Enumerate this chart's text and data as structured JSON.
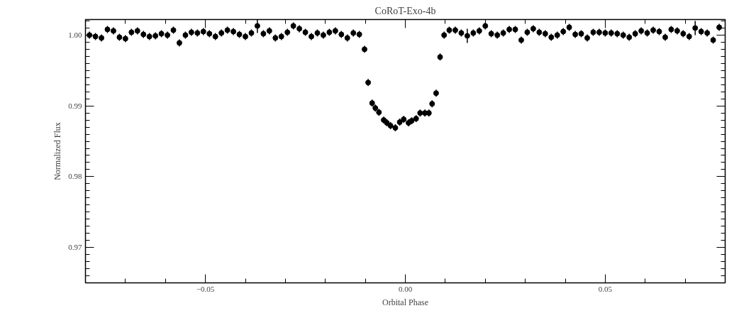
{
  "chart_data": {
    "type": "scatter",
    "title": "CoRoT-Exo-4b",
    "xlabel": "Orbital Phase",
    "ylabel": "Normalized Flux",
    "marker": "circle",
    "color": "#000000",
    "x": [
      -0.079,
      -0.0775,
      -0.076,
      -0.0745,
      -0.073,
      -0.0715,
      -0.07,
      -0.0685,
      -0.067,
      -0.0655,
      -0.064,
      -0.0625,
      -0.061,
      -0.0595,
      -0.058,
      -0.0565,
      -0.055,
      -0.0535,
      -0.052,
      -0.0505,
      -0.049,
      -0.0475,
      -0.046,
      -0.0445,
      -0.043,
      -0.0415,
      -0.04,
      -0.0385,
      -0.037,
      -0.0355,
      -0.034,
      -0.0325,
      -0.031,
      -0.0295,
      -0.028,
      -0.0265,
      -0.025,
      -0.0235,
      -0.022,
      -0.0205,
      -0.019,
      -0.0175,
      -0.016,
      -0.0145,
      -0.013,
      -0.0115,
      -0.0102,
      -0.0093,
      -0.0083,
      -0.0075,
      -0.0066,
      -0.0054,
      -0.0046,
      -0.0037,
      -0.0025,
      -0.0014,
      -0.0004,
      0.0008,
      0.0016,
      0.0027,
      0.0037,
      0.0049,
      0.0059,
      0.0067,
      0.0077,
      0.0087,
      0.0097,
      0.011,
      0.0125,
      0.014,
      0.0155,
      0.017,
      0.0185,
      0.02,
      0.0215,
      0.023,
      0.0245,
      0.026,
      0.0275,
      0.029,
      0.0305,
      0.032,
      0.0335,
      0.035,
      0.0365,
      0.038,
      0.0395,
      0.041,
      0.0425,
      0.044,
      0.0455,
      0.047,
      0.0485,
      0.05,
      0.0515,
      0.053,
      0.0545,
      0.056,
      0.0575,
      0.059,
      0.0605,
      0.062,
      0.0635,
      0.065,
      0.0665,
      0.068,
      0.0695,
      0.071,
      0.0725,
      0.074,
      0.0755,
      0.077,
      0.0785
    ],
    "values": [
      1.0,
      0.9998,
      0.9996,
      1.0008,
      1.0006,
      0.9997,
      0.9995,
      1.0004,
      1.0006,
      1.0001,
      0.9998,
      0.9999,
      1.0002,
      1.0,
      1.0007,
      0.9989,
      1.0,
      1.0004,
      1.0003,
      1.0005,
      1.0002,
      0.9998,
      1.0003,
      1.0007,
      1.0005,
      1.0001,
      0.9998,
      1.0003,
      1.0013,
      1.0002,
      1.0006,
      0.9996,
      0.9998,
      1.0004,
      1.0013,
      1.0009,
      1.0004,
      0.9998,
      1.0003,
      1.0,
      1.0004,
      1.0006,
      1.0001,
      0.9996,
      1.0003,
      1.0001,
      0.998,
      0.9933,
      0.9904,
      0.9897,
      0.9891,
      0.988,
      0.9876,
      0.9872,
      0.9869,
      0.9877,
      0.9881,
      0.9876,
      0.9879,
      0.9882,
      0.989,
      0.989,
      0.989,
      0.9903,
      0.9918,
      0.9969,
      1.0,
      1.0007,
      1.0007,
      1.0003,
      0.9999,
      1.0003,
      1.0006,
      1.0013,
      1.0002,
      1.0,
      1.0003,
      1.0008,
      1.0008,
      0.9993,
      1.0004,
      1.0009,
      1.0004,
      1.0002,
      0.9997,
      1.0,
      1.0005,
      1.0011,
      1.0001,
      1.0002,
      0.9996,
      1.0004,
      1.0004,
      1.0003,
      1.0003,
      1.0002,
      1.0,
      0.9997,
      1.0002,
      1.0006,
      1.0003,
      1.0007,
      1.0005,
      0.9997,
      1.0008,
      1.0006,
      1.0002,
      0.9998,
      1.001,
      1.0005,
      1.0003,
      0.9993,
      1.0011
    ],
    "errors": [
      0.0005,
      0.0005,
      0.0005,
      0.0005,
      0.0005,
      0.0005,
      0.0005,
      0.0005,
      0.0005,
      0.0005,
      0.0005,
      0.0005,
      0.0005,
      0.0005,
      0.0005,
      0.0005,
      0.0005,
      0.0005,
      0.0005,
      0.0005,
      0.0005,
      0.0005,
      0.0005,
      0.0005,
      0.0005,
      0.0005,
      0.0005,
      0.0005,
      0.001,
      0.0005,
      0.0005,
      0.0005,
      0.0005,
      0.0005,
      0.0005,
      0.0005,
      0.0005,
      0.0005,
      0.0005,
      0.0005,
      0.0005,
      0.0005,
      0.0005,
      0.0005,
      0.0005,
      0.0005,
      0.0005,
      0.0005,
      0.0005,
      0.0005,
      0.0005,
      0.0005,
      0.0005,
      0.0005,
      0.0005,
      0.0005,
      0.0005,
      0.0005,
      0.0005,
      0.0005,
      0.0005,
      0.0005,
      0.0005,
      0.0005,
      0.0005,
      0.0005,
      0.0005,
      0.0005,
      0.0005,
      0.0005,
      0.001,
      0.0005,
      0.0005,
      0.0005,
      0.0005,
      0.0005,
      0.0005,
      0.0005,
      0.0005,
      0.0005,
      0.0005,
      0.0005,
      0.0005,
      0.0005,
      0.0005,
      0.0005,
      0.0005,
      0.0005,
      0.0005,
      0.0005,
      0.0005,
      0.0005,
      0.0005,
      0.0005,
      0.0005,
      0.0005,
      0.0005,
      0.0005,
      0.0005,
      0.0005,
      0.0005,
      0.0005,
      0.0005,
      0.0005,
      0.0005,
      0.0005,
      0.0005,
      0.0005,
      0.001,
      0.0005,
      0.0005,
      0.0005,
      0.0005
    ],
    "xlim": [
      -0.08,
      0.08
    ],
    "ylim": [
      0.965,
      1.0022
    ],
    "xticks": [
      {
        "value": -0.05,
        "label": "−0.05"
      },
      {
        "value": 0.0,
        "label": "0.00"
      },
      {
        "value": 0.05,
        "label": "0.05"
      }
    ],
    "yticks": [
      0.97,
      0.98,
      0.99,
      {
        "value": 1.0,
        "label": "1.00"
      }
    ]
  }
}
